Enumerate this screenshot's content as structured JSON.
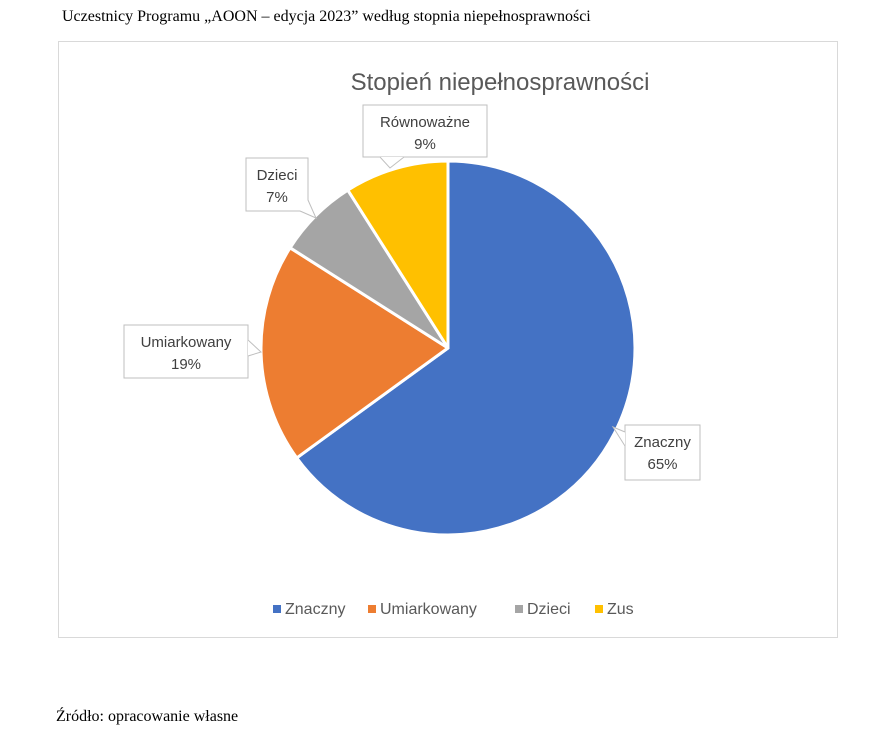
{
  "caption": "Uczestnicy Programu „AOON – edycja 2023” według stopnia niepełnosprawności",
  "source": "Źródło: opracowanie własne",
  "chart_data": {
    "type": "pie",
    "title": "Stopień niepełnosprawności",
    "slices": [
      {
        "name": "Znaczny",
        "value": 65,
        "color": "#4472C4"
      },
      {
        "name": "Umiarkowany",
        "value": 19,
        "color": "#ED7D31"
      },
      {
        "name": "Dzieci",
        "value": 7,
        "color": "#A5A5A5"
      },
      {
        "name": "Zus",
        "value": 9,
        "color": "#FFC000"
      }
    ],
    "data_labels": [
      {
        "slice": "Znaczny",
        "text": "Znaczny",
        "percent": "65%"
      },
      {
        "slice": "Umiarkowany",
        "text": "Umiarkowany",
        "percent": "19%"
      },
      {
        "slice": "Dzieci",
        "text": "Dzieci",
        "percent": "7%"
      },
      {
        "slice": "Zus",
        "text": "Równoważne",
        "percent": "9%"
      }
    ],
    "legend": [
      "Znaczny",
      "Umiarkowany",
      "Dzieci",
      "Zus"
    ],
    "legend_position": "bottom"
  }
}
